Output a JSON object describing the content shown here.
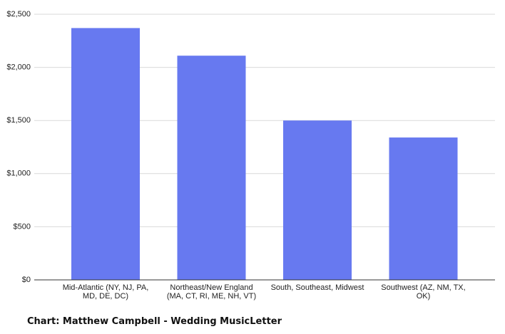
{
  "chart_data": {
    "type": "bar",
    "caption": "Chart: Matthew Campbell - Wedding MusicLetter",
    "categories": [
      "Mid-Atlantic (NY, NJ, PA, MD, DE, DC)",
      "Northeast/New England (MA, CT, RI, ME, NH, VT)",
      "South, Southeast, Midwest",
      "Southwest (AZ, NM, TX, OK)"
    ],
    "values": [
      2370,
      2110,
      1500,
      1340
    ],
    "color": "#6779f0",
    "ylim": [
      0,
      2500
    ],
    "yticks": [
      {
        "value": 0,
        "label": "$0"
      },
      {
        "value": 500,
        "label": "$500"
      },
      {
        "value": 1000,
        "label": "$1,000"
      },
      {
        "value": 1500,
        "label": "$1,500"
      },
      {
        "value": 2000,
        "label": "$2,000"
      },
      {
        "value": 2500,
        "label": "$2,500"
      }
    ],
    "grid": true
  }
}
